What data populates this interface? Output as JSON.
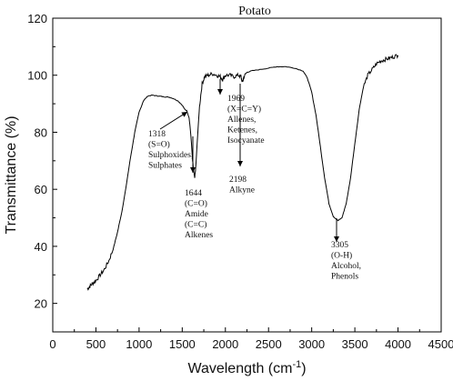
{
  "chart_data": {
    "type": "line",
    "title": "Potato",
    "xlabel": "Wavelength (cm",
    "xlabel_sup": "-1",
    "xlabel_close": ")",
    "ylabel": "Transmittance (%)",
    "xlim": [
      0,
      4500
    ],
    "ylim": [
      10,
      120
    ],
    "x_ticks": [
      "0",
      "500",
      "1000",
      "1500",
      "2000",
      "2500",
      "3000",
      "3500",
      "4000",
      "4500"
    ],
    "y_ticks": [
      "20",
      "40",
      "60",
      "80",
      "100",
      "120"
    ],
    "series": [
      {
        "color": "#000000",
        "points": [
          [
            400,
            25
          ],
          [
            430,
            26
          ],
          [
            460,
            27
          ],
          [
            500,
            28
          ],
          [
            550,
            30
          ],
          [
            600,
            32
          ],
          [
            650,
            35
          ],
          [
            700,
            39
          ],
          [
            750,
            45
          ],
          [
            800,
            52
          ],
          [
            850,
            61
          ],
          [
            900,
            71
          ],
          [
            950,
            80
          ],
          [
            1000,
            87
          ],
          [
            1050,
            91
          ],
          [
            1100,
            92.7
          ],
          [
            1150,
            93
          ],
          [
            1200,
            92.8
          ],
          [
            1250,
            92.6
          ],
          [
            1300,
            92.4
          ],
          [
            1350,
            92.3
          ],
          [
            1400,
            91.8
          ],
          [
            1450,
            91
          ],
          [
            1500,
            89.5
          ],
          [
            1530,
            88
          ],
          [
            1555,
            87.5
          ],
          [
            1580,
            85
          ],
          [
            1600,
            79
          ],
          [
            1620,
            70
          ],
          [
            1635,
            66
          ],
          [
            1644,
            64
          ],
          [
            1655,
            67
          ],
          [
            1675,
            77
          ],
          [
            1700,
            89
          ],
          [
            1730,
            97
          ],
          [
            1760,
            99.5
          ],
          [
            1800,
            100
          ],
          [
            1850,
            100.5
          ],
          [
            1900,
            100
          ],
          [
            1940,
            99.5
          ],
          [
            1969,
            98.5
          ],
          [
            2000,
            100
          ],
          [
            2050,
            100
          ],
          [
            2100,
            99.5
          ],
          [
            2150,
            100
          ],
          [
            2180,
            99.5
          ],
          [
            2198,
            97.5
          ],
          [
            2215,
            99.5
          ],
          [
            2250,
            101
          ],
          [
            2300,
            101.5
          ],
          [
            2400,
            102
          ],
          [
            2500,
            102.5
          ],
          [
            2600,
            103
          ],
          [
            2700,
            103
          ],
          [
            2800,
            102.5
          ],
          [
            2900,
            101.5
          ],
          [
            2950,
            99
          ],
          [
            3000,
            94
          ],
          [
            3050,
            86
          ],
          [
            3100,
            75
          ],
          [
            3150,
            64
          ],
          [
            3200,
            55
          ],
          [
            3250,
            50.5
          ],
          [
            3305,
            49
          ],
          [
            3350,
            50
          ],
          [
            3400,
            55
          ],
          [
            3450,
            64
          ],
          [
            3500,
            76
          ],
          [
            3550,
            88
          ],
          [
            3600,
            96
          ],
          [
            3650,
            100
          ],
          [
            3700,
            102
          ],
          [
            3750,
            104
          ],
          [
            3800,
            105
          ],
          [
            3850,
            105.5
          ],
          [
            3900,
            106
          ],
          [
            3950,
            106.5
          ],
          [
            4000,
            107
          ]
        ]
      }
    ],
    "annotations": [
      {
        "lines": [
          "1318",
          "(S=O)",
          "Sulphoxides,",
          "Sulphates"
        ],
        "x": 1318
      },
      {
        "lines": [
          "1644",
          "(C=O)",
          "Amide",
          "(C=C)",
          "Alkenes"
        ],
        "x": 1644
      },
      {
        "lines": [
          "1969",
          "(X=C=Y)",
          "Allenes,",
          "Ketenes,",
          "Isocyanate"
        ],
        "x": 1969
      },
      {
        "lines": [
          "2198",
          "Alkyne"
        ],
        "x": 2198
      },
      {
        "lines": [
          "3305",
          "(O-H)",
          "Alcohol,",
          "Phenols"
        ],
        "x": 3305
      }
    ],
    "grid": false,
    "legend": "none"
  }
}
